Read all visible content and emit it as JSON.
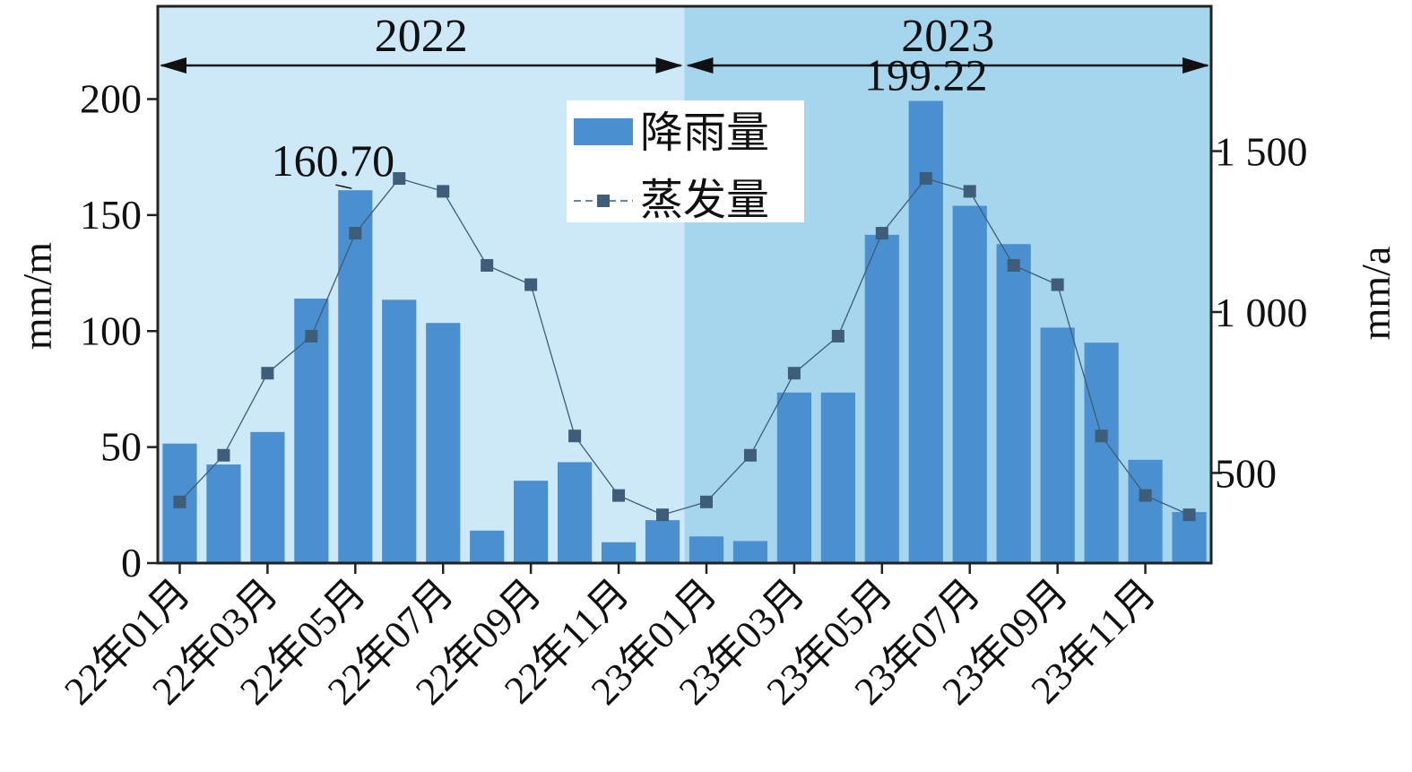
{
  "chart_data": {
    "type": "bar",
    "categories": [
      "22年01月",
      "22年02月",
      "22年03月",
      "22年04月",
      "22年05月",
      "22年06月",
      "22年07月",
      "22年08月",
      "22年09月",
      "22年10月",
      "22年11月",
      "22年12月",
      "23年01月",
      "23年02月",
      "23年03月",
      "23年04月",
      "23年05月",
      "23年06月",
      "23年07月",
      "23年08月",
      "23年09月",
      "23年10月",
      "23年11月",
      "23年12月"
    ],
    "xtick_labels": [
      "22年01月",
      "22年03月",
      "22年05月",
      "22年07月",
      "22年09月",
      "22年11月",
      "23年01月",
      "23年03月",
      "23年05月",
      "23年07月",
      "23年09月",
      "23年11月"
    ],
    "series": [
      {
        "name": "降雨量",
        "type": "bar",
        "axis": "left",
        "color": "#4a8fcf",
        "values": [
          51.5,
          42.5,
          56.5,
          114,
          160.7,
          113.5,
          103.5,
          14,
          35.5,
          43.5,
          9,
          18.5,
          11.5,
          9.5,
          73.5,
          73.5,
          141.5,
          199.22,
          154,
          137.5,
          101.5,
          95,
          44.5,
          22
        ]
      },
      {
        "name": "蒸发量",
        "type": "line",
        "axis": "right",
        "color": "#3d5d78",
        "values": [
          410,
          555,
          810,
          925,
          1245,
          1415,
          1375,
          1145,
          1085,
          615,
          430,
          370,
          410,
          555,
          810,
          925,
          1245,
          1415,
          1375,
          1145,
          1085,
          615,
          430,
          370
        ]
      }
    ],
    "ylabel_left": "mm/m",
    "ylabel_right": "mm/a",
    "ylim_left": [
      0,
      240
    ],
    "yticks_left": [
      {
        "value": 0,
        "label": "0"
      },
      {
        "value": 50,
        "label": "50"
      },
      {
        "value": 100,
        "label": "100"
      },
      {
        "value": 150,
        "label": "150"
      },
      {
        "value": 200,
        "label": "200"
      }
    ],
    "ylim_right": [
      220,
      1950
    ],
    "yticks_right": [
      {
        "value": 500,
        "label": "500"
      },
      {
        "value": 1000,
        "label": "1 000"
      },
      {
        "value": 1500,
        "label": "1 500"
      }
    ],
    "periods": [
      {
        "label": "2022",
        "start": 0,
        "end": 12,
        "color": "#cde8f6"
      },
      {
        "label": "2023",
        "start": 12,
        "end": 24,
        "color": "#a6d5ee"
      }
    ],
    "annotations": [
      {
        "text": "160.70",
        "index": 4
      },
      {
        "text": "199.22",
        "index": 17
      }
    ],
    "legend_position": "top-center",
    "grid": false
  }
}
